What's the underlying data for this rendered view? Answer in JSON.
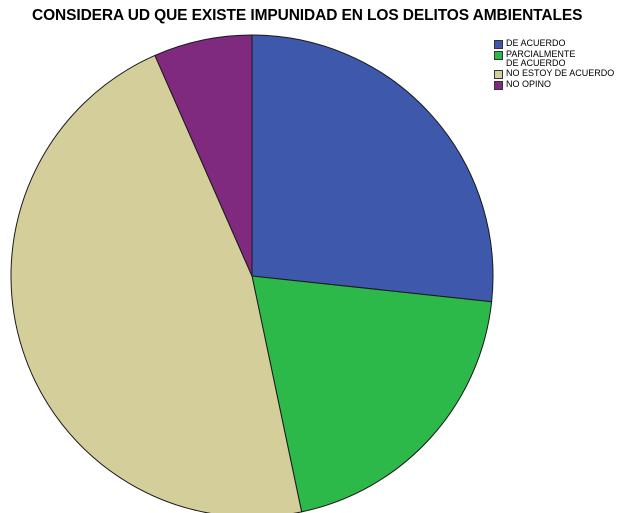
{
  "chart_data": {
    "type": "pie",
    "title": "CONSIDERA UD QUE EXISTE IMPUNIDAD EN LOS DELITOS AMBIENTALES",
    "legend_position": "top-right",
    "slices": [
      {
        "label": "DE ACUERDO",
        "value": 26.7,
        "color": "#3E58AC"
      },
      {
        "label": "PARCIALMENTE DE ACUERDO",
        "value": 20.0,
        "color": "#2DB84A"
      },
      {
        "label": "NO ESTOY DE ACUERDO",
        "value": 46.7,
        "color": "#D4CE9A"
      },
      {
        "label": "NO OPINO",
        "value": 6.6,
        "color": "#7F2A7E"
      }
    ]
  }
}
